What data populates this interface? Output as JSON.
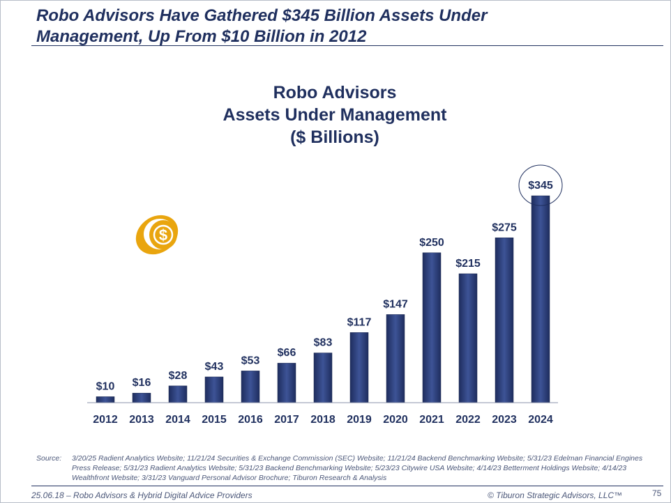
{
  "headline": {
    "line1": "Robo Advisors Have Gathered $345 Billion Assets Under",
    "line2": "Management, Up From $10 Billion in 2012"
  },
  "chart_data": {
    "type": "bar",
    "title_lines": [
      "Robo Advisors",
      "Assets Under Management",
      "($ Billions)"
    ],
    "categories": [
      "2012",
      "2013",
      "2014",
      "2015",
      "2016",
      "2017",
      "2018",
      "2019",
      "2020",
      "2021",
      "2022",
      "2023",
      "2024"
    ],
    "values": [
      10,
      16,
      28,
      43,
      53,
      66,
      83,
      117,
      147,
      250,
      215,
      275,
      345
    ],
    "data_labels": [
      "$10",
      "$16",
      "$28",
      "$43",
      "$53",
      "$66",
      "$83",
      "$117",
      "$147",
      "$250",
      "$215",
      "$275",
      "$345"
    ],
    "highlighted_category": "2024",
    "ylim": [
      0,
      345
    ],
    "grid": false,
    "bar_color": "#2c3f7a"
  },
  "icon": "dollar-coin-icon",
  "source": {
    "label": "Source:",
    "text": "3/20/25 Radient Analytics Website; 11/21/24 Securities & Exchange Commission (SEC) Website; 11/21/24 Backend Benchmarking Website; 5/31/23 Edelman Financial Engines Press Release; 5/31/23 Radient Analytics Website; 5/31/23 Backend Benchmarking Website;  5/23/23 Citywire USA Website; 4/14/23 Betterment Holdings Website; 4/14/23 Wealthfront Website; 3/31/23 Vanguard Personal Advisor Brochure; Tiburon Research & Analysis"
  },
  "footer": {
    "left": "25.06.18 – Robo Advisors & Hybrid Digital Advice Providers",
    "right": "© Tiburon Strategic Advisors, LLC™",
    "page": "75"
  }
}
